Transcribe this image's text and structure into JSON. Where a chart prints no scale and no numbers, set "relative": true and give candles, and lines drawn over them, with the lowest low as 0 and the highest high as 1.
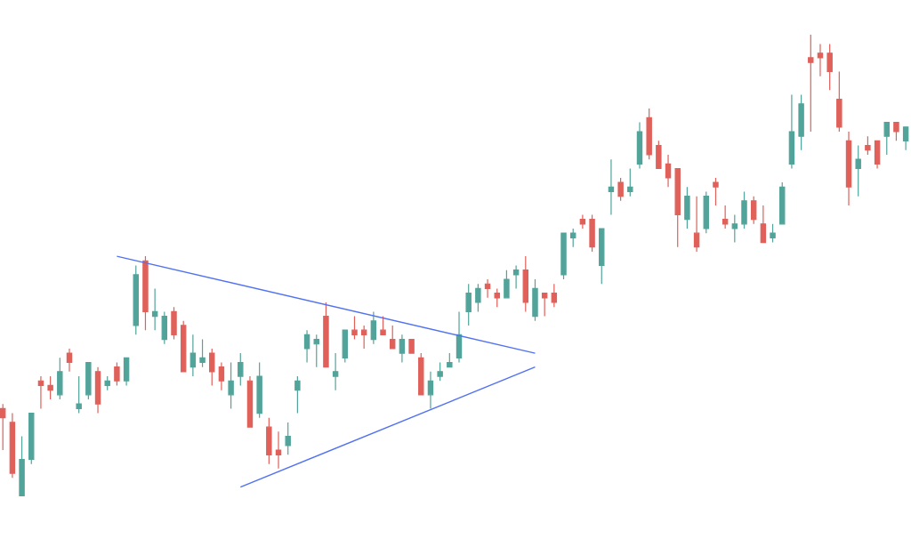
{
  "chart_data": {
    "type": "candlestick",
    "relative": true,
    "categories": [
      null,
      null,
      null,
      null,
      null,
      null,
      null,
      null,
      null,
      null,
      null,
      null,
      null,
      null,
      null,
      null,
      null,
      null,
      null,
      null,
      null,
      null,
      null,
      null,
      null,
      null,
      null,
      null,
      null,
      null,
      null,
      null,
      null,
      null,
      null,
      null,
      null,
      null,
      null,
      null,
      null,
      null,
      null,
      null,
      null,
      null,
      null,
      null,
      null,
      null,
      null,
      null,
      null,
      null,
      null,
      null,
      null,
      null,
      null,
      null,
      null,
      null,
      null,
      null,
      null,
      null,
      null,
      null,
      null,
      null,
      null,
      null,
      null,
      null,
      null,
      null,
      null,
      null,
      null,
      null,
      null,
      null,
      null,
      null,
      null,
      null,
      null,
      null,
      null,
      null,
      null,
      null,
      null,
      null,
      null,
      null
    ],
    "colors": [
      "#e0605a",
      "#e0605a",
      "#52a49a",
      "#52a49a",
      "#e0605a",
      "#e0605a",
      "#52a49a",
      "#e0605a",
      "#52a49a",
      "#52a49a",
      "#e0605a",
      "#52a49a",
      "#e0605a",
      "#52a49a",
      "#52a49a",
      "#e0605a",
      "#52a49a",
      "#52a49a",
      "#e0605a",
      "#e0605a",
      "#52a49a",
      "#52a49a",
      "#e0605a",
      "#e0605a",
      "#52a49a",
      "#52a49a",
      "#e0605a",
      "#52a49a",
      "#e0605a",
      "#e0605a",
      "#52a49a",
      "#52a49a",
      "#52a49a",
      "#52a49a",
      "#e0605a",
      "#52a49a",
      "#52a49a",
      "#e0605a",
      "#e0605a",
      "#52a49a",
      "#e0605a",
      "#e0605a",
      "#52a49a",
      "#e0605a",
      "#e0605a",
      "#52a49a",
      "#52a49a",
      "#52a49a",
      "#52a49a",
      "#52a49a",
      "#52a49a",
      "#e0605a",
      "#e0605a",
      "#52a49a",
      "#52a49a",
      "#e0605a",
      "#52a49a",
      "#e0605a",
      "#e0605a",
      "#52a49a",
      "#52a49a",
      "#e0605a",
      "#e0605a",
      "#52a49a",
      "#52a49a",
      "#e0605a",
      "#52a49a",
      "#52a49a",
      "#e0605a",
      "#e0605a",
      "#e0605a",
      "#e0605a",
      "#52a49a",
      "#e0605a",
      "#52a49a",
      "#e0605a",
      "#e0605a",
      "#52a49a",
      "#52a49a",
      "#e0605a",
      "#e0605a",
      "#52a49a",
      "#52a49a",
      "#52a49a",
      "#52a49a",
      "#e0605a",
      "#e0605a",
      "#e0605a",
      "#e0605a",
      "#e0605a",
      "#52a49a",
      "#e0605a",
      "#e0605a",
      "#52a49a",
      "#e0605a",
      "#52a49a"
    ],
    "ohlc": [
      [
        0.19,
        0.2,
        0.1,
        0.17
      ],
      [
        0.16,
        0.18,
        0.04,
        0.05
      ],
      [
        0.0,
        0.13,
        0.0,
        0.08
      ],
      [
        0.08,
        0.18,
        0.07,
        0.18
      ],
      [
        0.25,
        0.26,
        0.19,
        0.24
      ],
      [
        0.24,
        0.26,
        0.21,
        0.23
      ],
      [
        0.22,
        0.3,
        0.21,
        0.27
      ],
      [
        0.31,
        0.32,
        0.27,
        0.29
      ],
      [
        0.19,
        0.26,
        0.18,
        0.2
      ],
      [
        0.22,
        0.29,
        0.21,
        0.29
      ],
      [
        0.27,
        0.28,
        0.18,
        0.2
      ],
      [
        0.24,
        0.26,
        0.23,
        0.25
      ],
      [
        0.28,
        0.29,
        0.24,
        0.25
      ],
      [
        0.25,
        0.3,
        0.24,
        0.3
      ],
      [
        0.37,
        0.5,
        0.35,
        0.48
      ],
      [
        0.51,
        0.52,
        0.36,
        0.4
      ],
      [
        0.39,
        0.45,
        0.36,
        0.4
      ],
      [
        0.34,
        0.4,
        0.33,
        0.39
      ],
      [
        0.4,
        0.41,
        0.34,
        0.35
      ],
      [
        0.37,
        0.38,
        0.27,
        0.27
      ],
      [
        0.28,
        0.35,
        0.26,
        0.31
      ],
      [
        0.29,
        0.34,
        0.28,
        0.3
      ],
      [
        0.31,
        0.32,
        0.24,
        0.27
      ],
      [
        0.28,
        0.29,
        0.23,
        0.25
      ],
      [
        0.22,
        0.29,
        0.19,
        0.25
      ],
      [
        0.26,
        0.31,
        0.24,
        0.29
      ],
      [
        0.25,
        0.26,
        0.15,
        0.15
      ],
      [
        0.18,
        0.29,
        0.17,
        0.26
      ],
      [
        0.15,
        0.17,
        0.07,
        0.09
      ],
      [
        0.1,
        0.14,
        0.06,
        0.09
      ],
      [
        0.11,
        0.16,
        0.09,
        0.13
      ],
      [
        0.23,
        0.26,
        0.18,
        0.25
      ],
      [
        0.32,
        0.36,
        0.29,
        0.35
      ],
      [
        0.33,
        0.35,
        0.28,
        0.34
      ],
      [
        0.39,
        0.42,
        0.28,
        0.28
      ],
      [
        0.26,
        0.31,
        0.23,
        0.27
      ],
      [
        0.3,
        0.36,
        0.29,
        0.36
      ],
      [
        0.36,
        0.39,
        0.34,
        0.35
      ],
      [
        0.36,
        0.37,
        0.32,
        0.35
      ],
      [
        0.34,
        0.4,
        0.33,
        0.38
      ],
      [
        0.36,
        0.39,
        0.35,
        0.35
      ],
      [
        0.34,
        0.37,
        0.32,
        0.32
      ],
      [
        0.31,
        0.35,
        0.29,
        0.34
      ],
      [
        0.34,
        0.34,
        0.31,
        0.31
      ],
      [
        0.3,
        0.31,
        0.22,
        0.22
      ],
      [
        0.22,
        0.27,
        0.19,
        0.25
      ],
      [
        0.26,
        0.29,
        0.25,
        0.27
      ],
      [
        0.28,
        0.31,
        0.28,
        0.29
      ],
      [
        0.3,
        0.4,
        0.29,
        0.35
      ],
      [
        0.4,
        0.46,
        0.37,
        0.44
      ],
      [
        0.42,
        0.46,
        0.4,
        0.45
      ],
      [
        0.46,
        0.47,
        0.43,
        0.45
      ],
      [
        0.44,
        0.45,
        0.41,
        0.43
      ],
      [
        0.43,
        0.49,
        0.43,
        0.47
      ],
      [
        0.48,
        0.5,
        0.45,
        0.49
      ],
      [
        0.49,
        0.52,
        0.4,
        0.42
      ],
      [
        0.39,
        0.47,
        0.38,
        0.45
      ],
      [
        0.44,
        0.44,
        0.39,
        0.43
      ],
      [
        0.44,
        0.46,
        0.41,
        0.42
      ],
      [
        0.48,
        0.57,
        0.47,
        0.57
      ],
      [
        0.56,
        0.58,
        0.54,
        0.57
      ],
      [
        0.6,
        0.61,
        0.58,
        0.59
      ],
      [
        0.6,
        0.61,
        0.53,
        0.54
      ],
      [
        0.5,
        0.58,
        0.46,
        0.58
      ],
      [
        0.66,
        0.73,
        0.61,
        0.67
      ],
      [
        0.68,
        0.69,
        0.64,
        0.65
      ],
      [
        0.66,
        0.71,
        0.65,
        0.67
      ],
      [
        0.72,
        0.81,
        0.71,
        0.79
      ],
      [
        0.82,
        0.84,
        0.73,
        0.74
      ],
      [
        0.76,
        0.77,
        0.71,
        0.71
      ],
      [
        0.72,
        0.74,
        0.67,
        0.69
      ],
      [
        0.71,
        0.71,
        0.54,
        0.61
      ],
      [
        0.6,
        0.67,
        0.58,
        0.65
      ],
      [
        0.57,
        0.65,
        0.53,
        0.54
      ],
      [
        0.58,
        0.66,
        0.57,
        0.65
      ],
      [
        0.68,
        0.69,
        0.63,
        0.67
      ],
      [
        0.6,
        0.63,
        0.58,
        0.59
      ],
      [
        0.58,
        0.61,
        0.55,
        0.59
      ],
      [
        0.59,
        0.66,
        0.58,
        0.64
      ],
      [
        0.64,
        0.65,
        0.59,
        0.6
      ],
      [
        0.59,
        0.63,
        0.55,
        0.55
      ],
      [
        0.56,
        0.59,
        0.55,
        0.57
      ],
      [
        0.59,
        0.68,
        0.59,
        0.67
      ],
      [
        0.72,
        0.87,
        0.71,
        0.79
      ],
      [
        0.78,
        0.87,
        0.75,
        0.85
      ],
      [
        0.95,
        1.0,
        0.79,
        0.94
      ],
      [
        0.96,
        0.98,
        0.91,
        0.95
      ],
      [
        0.96,
        0.98,
        0.88,
        0.92
      ],
      [
        0.86,
        0.92,
        0.79,
        0.8
      ],
      [
        0.77,
        0.79,
        0.63,
        0.67
      ],
      [
        0.71,
        0.76,
        0.65,
        0.73
      ],
      [
        0.76,
        0.78,
        0.74,
        0.75
      ],
      [
        0.77,
        0.77,
        0.71,
        0.72
      ],
      [
        0.78,
        0.81,
        0.74,
        0.81
      ],
      [
        0.81,
        0.81,
        0.77,
        0.79
      ],
      [
        0.77,
        0.8,
        0.75,
        0.8
      ]
    ],
    "series": [
      {
        "type": "line",
        "color": "#5272f2",
        "values": [
          null,
          null,
          null,
          null,
          null,
          null,
          null,
          null,
          null,
          null,
          null,
          null,
          0.52,
          null,
          null,
          null,
          null,
          null,
          null,
          null,
          null,
          null,
          null,
          null,
          null,
          null,
          null,
          null,
          null,
          null,
          null,
          null,
          null,
          null,
          null,
          null,
          null,
          null,
          null,
          null,
          null,
          null,
          null,
          null,
          null,
          null,
          null,
          null,
          null,
          null,
          null,
          null,
          null,
          null,
          null,
          null,
          0.31,
          null,
          null,
          null,
          null,
          null,
          null,
          null,
          null,
          null,
          null,
          null,
          null,
          null,
          null,
          null,
          null,
          null,
          null,
          null,
          null,
          null,
          null,
          null,
          null,
          null,
          null,
          null,
          null,
          null,
          null,
          null,
          null,
          null,
          null,
          null,
          null,
          null,
          null,
          null
        ]
      },
      {
        "type": "line",
        "color": "#5272f2",
        "values": [
          null,
          null,
          null,
          null,
          null,
          null,
          null,
          null,
          null,
          null,
          null,
          null,
          null,
          null,
          null,
          null,
          null,
          null,
          null,
          null,
          null,
          null,
          null,
          null,
          null,
          0.02,
          null,
          null,
          null,
          null,
          null,
          null,
          null,
          null,
          null,
          null,
          null,
          null,
          null,
          null,
          null,
          null,
          null,
          null,
          null,
          null,
          null,
          null,
          null,
          null,
          null,
          null,
          null,
          null,
          null,
          null,
          0.28,
          null,
          null,
          null,
          null,
          null,
          null,
          null,
          null,
          null,
          null,
          null,
          null,
          null,
          null,
          null,
          null,
          null,
          null,
          null,
          null,
          null,
          null,
          null,
          null,
          null,
          null,
          null,
          null,
          null,
          null,
          null,
          null,
          null,
          null,
          null,
          null,
          null,
          null,
          null
        ]
      }
    ]
  }
}
